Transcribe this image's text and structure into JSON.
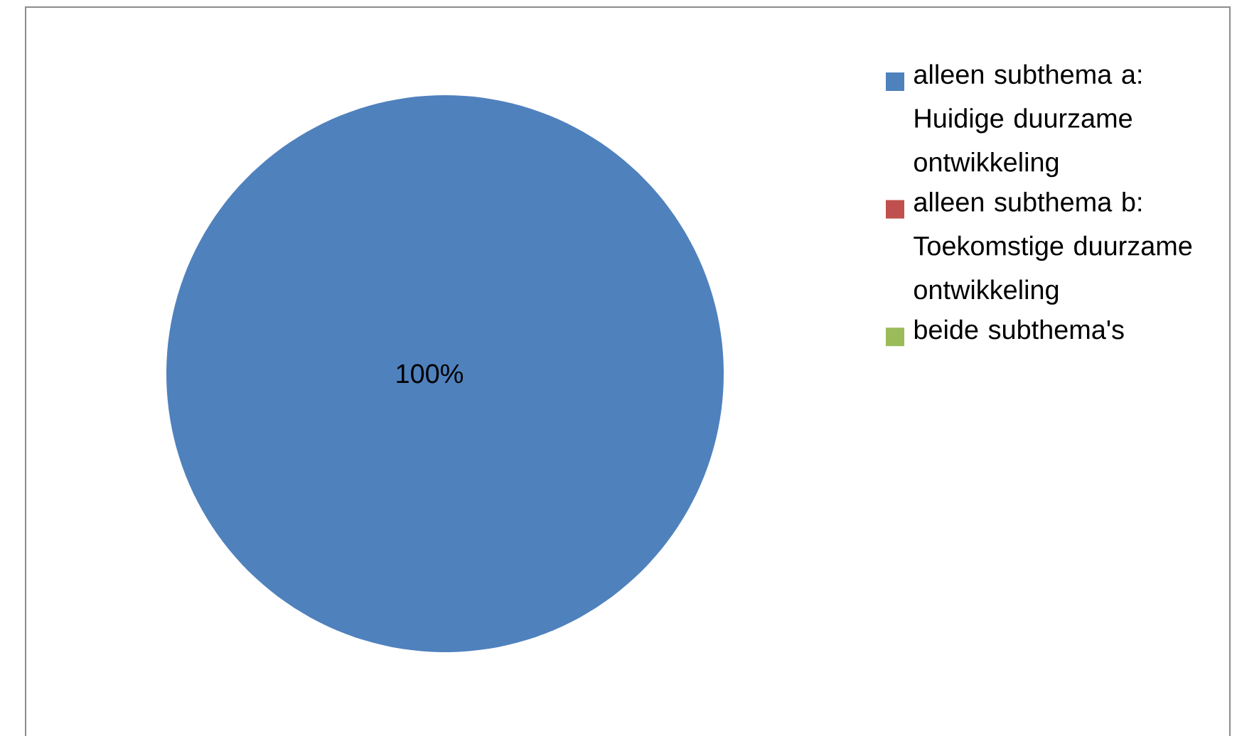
{
  "chart_data": {
    "type": "pie",
    "categories": [
      "alleen subthema a: Huidige duurzame ontwikkeling",
      "alleen subthema b: Toekomstige duurzame ontwikkeling",
      "beide subthema's"
    ],
    "values": [
      100,
      0,
      0
    ],
    "colors": [
      "#4f81bd",
      "#c0504d",
      "#9bbb59"
    ],
    "value_labels": [
      "100%",
      null,
      null
    ],
    "legend": "right"
  }
}
